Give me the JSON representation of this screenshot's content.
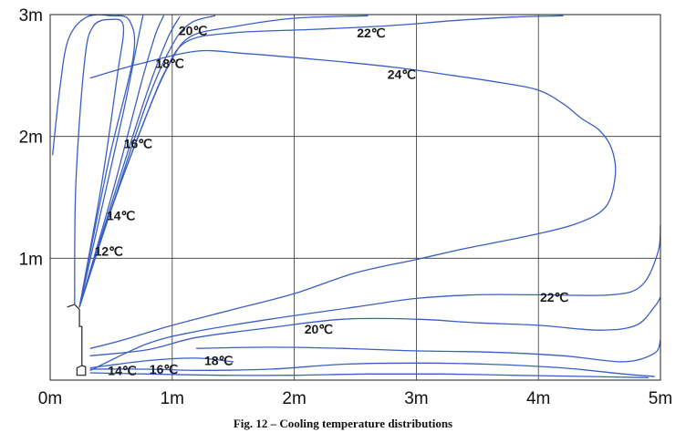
{
  "caption": "Fig. 12 – Cooling temperature distributions",
  "chart_data": {
    "type": "contour",
    "xlim": [
      0,
      5
    ],
    "ylim": [
      0,
      3
    ],
    "x_ticks": [
      {
        "value": 0,
        "label": "0m"
      },
      {
        "value": 1,
        "label": "1m"
      },
      {
        "value": 2,
        "label": "2m"
      },
      {
        "value": 3,
        "label": "3m"
      },
      {
        "value": 4,
        "label": "4m"
      },
      {
        "value": 5,
        "label": "5m"
      }
    ],
    "y_ticks": [
      {
        "value": 1,
        "label": "1m"
      },
      {
        "value": 2,
        "label": "2m"
      },
      {
        "value": 3,
        "label": "3m"
      }
    ],
    "grid": true,
    "line_color": "#3a5fc4",
    "label_unit": "°C",
    "isotherms": [
      {
        "level": 24,
        "points": [
          [
            0.33,
            2.48
          ],
          [
            0.6,
            2.56
          ],
          [
            0.75,
            2.6
          ],
          [
            1.2,
            2.7
          ],
          [
            1.6,
            2.68
          ],
          [
            2.2,
            2.63
          ],
          [
            2.8,
            2.57
          ],
          [
            3.3,
            2.5
          ],
          [
            3.7,
            2.44
          ],
          [
            4.0,
            2.38
          ],
          [
            4.2,
            2.27
          ],
          [
            4.35,
            2.15
          ],
          [
            4.5,
            2.05
          ],
          [
            4.6,
            1.9
          ],
          [
            4.63,
            1.68
          ],
          [
            4.55,
            1.42
          ],
          [
            4.3,
            1.28
          ],
          [
            3.9,
            1.18
          ],
          [
            3.4,
            1.08
          ],
          [
            3.0,
            0.99
          ],
          [
            2.5,
            0.88
          ],
          [
            2.0,
            0.71
          ],
          [
            1.5,
            0.58
          ],
          [
            1.0,
            0.45
          ],
          [
            0.6,
            0.33
          ],
          [
            0.33,
            0.26
          ]
        ]
      },
      {
        "level": 22,
        "points": [
          [
            0.24,
            0.6
          ],
          [
            0.5,
            1.4
          ],
          [
            0.78,
            2.15
          ],
          [
            0.95,
            2.55
          ],
          [
            1.12,
            2.78
          ],
          [
            1.5,
            2.85
          ],
          [
            2.2,
            2.88
          ],
          [
            2.8,
            2.91
          ],
          [
            3.3,
            2.95
          ],
          [
            3.8,
            2.98
          ],
          [
            4.2,
            2.99
          ]
        ]
      },
      {
        "level": 22,
        "points": [
          [
            0.33,
            0.08
          ],
          [
            0.8,
            0.3
          ],
          [
            1.2,
            0.4
          ],
          [
            1.8,
            0.5
          ],
          [
            2.5,
            0.6
          ],
          [
            3.0,
            0.67
          ],
          [
            3.5,
            0.7
          ],
          [
            4.0,
            0.7
          ],
          [
            4.6,
            0.7
          ],
          [
            4.85,
            0.78
          ],
          [
            4.98,
            1.05
          ],
          [
            5.0,
            1.27
          ]
        ]
      },
      {
        "level": 20,
        "points": [
          [
            0.24,
            0.6
          ],
          [
            0.5,
            1.4
          ],
          [
            0.8,
            2.2
          ],
          [
            0.98,
            2.6
          ],
          [
            1.15,
            2.82
          ],
          [
            1.5,
            2.9
          ],
          [
            2.0,
            2.97
          ],
          [
            2.6,
            2.99
          ]
        ]
      },
      {
        "level": 20,
        "points": [
          [
            0.33,
            0.2
          ],
          [
            0.8,
            0.25
          ],
          [
            1.2,
            0.35
          ],
          [
            1.8,
            0.43
          ],
          [
            2.4,
            0.5
          ],
          [
            3.0,
            0.5
          ],
          [
            3.5,
            0.47
          ],
          [
            4.0,
            0.45
          ],
          [
            4.5,
            0.41
          ],
          [
            4.8,
            0.45
          ],
          [
            4.95,
            0.6
          ],
          [
            5.0,
            0.68
          ]
        ]
      },
      {
        "level": 18,
        "points": [
          [
            0.24,
            0.6
          ],
          [
            0.5,
            1.4
          ],
          [
            0.8,
            2.3
          ],
          [
            1.0,
            2.75
          ],
          [
            1.15,
            2.93
          ],
          [
            1.35,
            2.99
          ]
        ]
      },
      {
        "level": 18,
        "points": [
          [
            0.33,
            0.1
          ],
          [
            0.8,
            0.16
          ],
          [
            1.2,
            0.18
          ],
          [
            1.5,
            0.15
          ]
        ]
      },
      {
        "level": 18,
        "points": [
          [
            1.2,
            0.26
          ],
          [
            1.8,
            0.27
          ],
          [
            2.4,
            0.26
          ],
          [
            3.0,
            0.24
          ],
          [
            3.6,
            0.23
          ],
          [
            4.2,
            0.2
          ],
          [
            4.7,
            0.15
          ],
          [
            4.95,
            0.22
          ],
          [
            5.0,
            0.33
          ]
        ]
      },
      {
        "level": 16,
        "points": [
          [
            0.24,
            0.6
          ],
          [
            0.55,
            1.6
          ],
          [
            0.8,
            2.38
          ],
          [
            0.96,
            2.8
          ],
          [
            1.06,
            2.98
          ]
        ]
      },
      {
        "level": 16,
        "points": [
          [
            0.33,
            0.09
          ],
          [
            0.8,
            0.09
          ],
          [
            1.2,
            0.08
          ],
          [
            1.8,
            0.09
          ],
          [
            2.4,
            0.13
          ],
          [
            3.0,
            0.14
          ],
          [
            3.6,
            0.13
          ],
          [
            4.2,
            0.1
          ],
          [
            4.7,
            0.05
          ],
          [
            4.95,
            0.03
          ]
        ]
      },
      {
        "level": 14,
        "points": [
          [
            0.24,
            0.6
          ],
          [
            0.5,
            1.5
          ],
          [
            0.75,
            2.45
          ],
          [
            0.86,
            2.83
          ],
          [
            0.93,
            2.99
          ]
        ]
      },
      {
        "level": 14,
        "points": [
          [
            0.33,
            0.06
          ],
          [
            0.8,
            0.05
          ],
          [
            1.4,
            0.04
          ],
          [
            2.0,
            0.04
          ],
          [
            2.6,
            0.05
          ],
          [
            3.2,
            0.05
          ],
          [
            3.8,
            0.04
          ],
          [
            4.4,
            0.03
          ],
          [
            4.9,
            0.02
          ]
        ]
      },
      {
        "level": 12,
        "points": [
          [
            0.24,
            0.6
          ],
          [
            0.42,
            1.4
          ],
          [
            0.6,
            2.2
          ],
          [
            0.7,
            2.7
          ],
          [
            0.76,
            2.99
          ]
        ]
      },
      {
        "level": 12,
        "points": [
          [
            0.24,
            0.6
          ],
          [
            0.42,
            1.6
          ],
          [
            0.55,
            2.5
          ],
          [
            0.6,
            2.9
          ],
          [
            0.5,
            2.96
          ],
          [
            0.35,
            2.9
          ],
          [
            0.28,
            2.6
          ],
          [
            0.21,
            1.6
          ],
          [
            0.2,
            0.62
          ]
        ]
      },
      {
        "level": 12,
        "points": [
          [
            0.24,
            0.6
          ],
          [
            0.48,
            1.8
          ],
          [
            0.68,
            2.65
          ],
          [
            0.65,
            2.95
          ],
          [
            0.5,
            2.99
          ],
          [
            0.3,
            2.98
          ],
          [
            0.15,
            2.8
          ],
          [
            0.08,
            2.4
          ],
          [
            0.02,
            1.85
          ]
        ]
      }
    ],
    "labels": [
      {
        "text": "20℃",
        "x": 1.17,
        "y": 2.86
      },
      {
        "text": "22℃",
        "x": 2.63,
        "y": 2.84
      },
      {
        "text": "18℃",
        "x": 0.98,
        "y": 2.59
      },
      {
        "text": "24℃",
        "x": 2.88,
        "y": 2.5
      },
      {
        "text": "16℃",
        "x": 0.72,
        "y": 1.93
      },
      {
        "text": "14℃",
        "x": 0.58,
        "y": 1.34
      },
      {
        "text": "12℃",
        "x": 0.48,
        "y": 1.05
      },
      {
        "text": "22℃",
        "x": 4.13,
        "y": 0.67
      },
      {
        "text": "20℃",
        "x": 2.2,
        "y": 0.41
      },
      {
        "text": "18℃",
        "x": 1.38,
        "y": 0.15
      },
      {
        "text": "14℃",
        "x": 0.59,
        "y": 0.07
      },
      {
        "text": "16℃",
        "x": 0.93,
        "y": 0.08
      }
    ],
    "unit_outline": [
      [
        0.14,
        0.6
      ],
      [
        0.2,
        0.62
      ],
      [
        0.24,
        0.58
      ],
      [
        0.24,
        0.44
      ],
      [
        0.26,
        0.44
      ],
      [
        0.26,
        0.12
      ],
      [
        0.22,
        0.1
      ],
      [
        0.22,
        0.04
      ],
      [
        0.29,
        0.04
      ],
      [
        0.29,
        0.11
      ],
      [
        0.26,
        0.12
      ]
    ]
  }
}
